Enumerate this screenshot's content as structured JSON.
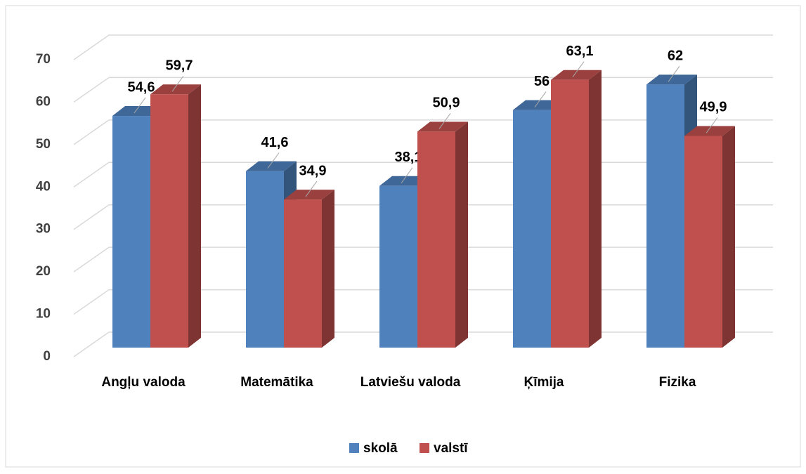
{
  "chart_data": {
    "type": "bar3d",
    "categories": [
      "Angļu valoda",
      "Matemātika",
      "Latviešu valoda",
      "Ķīmija",
      "Fizika"
    ],
    "series": [
      {
        "name": "skolā",
        "color": "#4f81bd",
        "values": [
          54.6,
          41.6,
          38.1,
          56,
          62
        ],
        "value_labels": [
          "54,6",
          "41,6",
          "38,1",
          "56",
          "62"
        ]
      },
      {
        "name": "valstī",
        "color": "#c0504d",
        "values": [
          59.7,
          34.9,
          50.9,
          63.1,
          49.9
        ],
        "value_labels": [
          "59,7",
          "34,9",
          "50,9",
          "63,1",
          "49,9"
        ]
      }
    ],
    "ylim": [
      0,
      70
    ],
    "yticks": [
      0,
      10,
      20,
      30,
      40,
      50,
      60,
      70
    ],
    "grid": true,
    "legend": "bottom"
  }
}
